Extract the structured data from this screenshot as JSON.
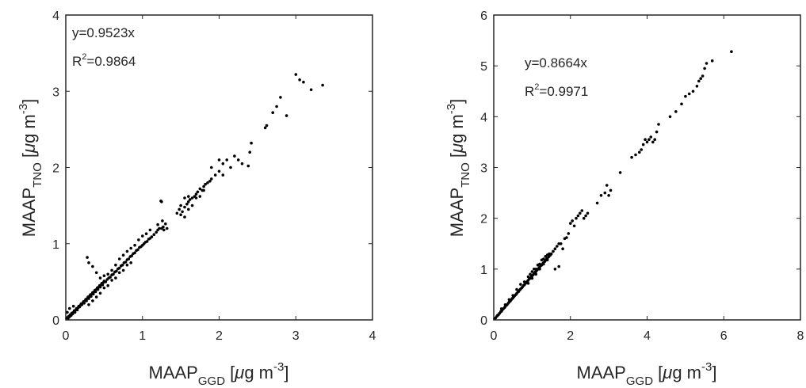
{
  "chart_data": [
    {
      "type": "scatter",
      "annotation": {
        "equation": "y=0.9523x",
        "r2_label": "R",
        "r2_sup": "2",
        "r2_value": "=0.9864"
      },
      "xlabel": {
        "base": "MAAP",
        "sub": "GGD",
        "unit_open": " [",
        "mu": "μ",
        "unit_rest": "g m",
        "exp": "-3",
        "unit_close": "]"
      },
      "ylabel": {
        "base": "MAAP",
        "sub": "TNO",
        "unit_open": " [",
        "mu": "μ",
        "unit_rest": "g m",
        "exp": "-3",
        "unit_close": "]"
      },
      "xlim": [
        0,
        4
      ],
      "ylim": [
        0,
        4
      ],
      "xticks": [
        "0",
        "1",
        "2",
        "3",
        "4"
      ],
      "yticks": [
        "0",
        "1",
        "2",
        "3",
        "4"
      ],
      "points": [
        [
          0.01,
          0.02
        ],
        [
          0.02,
          0.03
        ],
        [
          0.03,
          0.02
        ],
        [
          0.04,
          0.05
        ],
        [
          0.05,
          0.04
        ],
        [
          0.06,
          0.07
        ],
        [
          0.07,
          0.06
        ],
        [
          0.08,
          0.09
        ],
        [
          0.09,
          0.08
        ],
        [
          0.1,
          0.1
        ],
        [
          0.11,
          0.12
        ],
        [
          0.12,
          0.1
        ],
        [
          0.13,
          0.13
        ],
        [
          0.14,
          0.15
        ],
        [
          0.15,
          0.13
        ],
        [
          0.16,
          0.16
        ],
        [
          0.17,
          0.18
        ],
        [
          0.18,
          0.17
        ],
        [
          0.19,
          0.19
        ],
        [
          0.2,
          0.21
        ],
        [
          0.21,
          0.2
        ],
        [
          0.22,
          0.22
        ],
        [
          0.23,
          0.24
        ],
        [
          0.24,
          0.22
        ],
        [
          0.25,
          0.25
        ],
        [
          0.26,
          0.27
        ],
        [
          0.27,
          0.25
        ],
        [
          0.28,
          0.28
        ],
        [
          0.29,
          0.3
        ],
        [
          0.3,
          0.28
        ],
        [
          0.31,
          0.31
        ],
        [
          0.32,
          0.33
        ],
        [
          0.33,
          0.31
        ],
        [
          0.34,
          0.34
        ],
        [
          0.35,
          0.36
        ],
        [
          0.36,
          0.34
        ],
        [
          0.37,
          0.37
        ],
        [
          0.38,
          0.39
        ],
        [
          0.39,
          0.37
        ],
        [
          0.4,
          0.4
        ],
        [
          0.41,
          0.42
        ],
        [
          0.42,
          0.4
        ],
        [
          0.43,
          0.43
        ],
        [
          0.44,
          0.45
        ],
        [
          0.45,
          0.43
        ],
        [
          0.46,
          0.46
        ],
        [
          0.47,
          0.48
        ],
        [
          0.48,
          0.46
        ],
        [
          0.49,
          0.49
        ],
        [
          0.5,
          0.51
        ],
        [
          0.52,
          0.5
        ],
        [
          0.54,
          0.53
        ],
        [
          0.56,
          0.55
        ],
        [
          0.58,
          0.56
        ],
        [
          0.6,
          0.59
        ],
        [
          0.62,
          0.6
        ],
        [
          0.64,
          0.63
        ],
        [
          0.66,
          0.64
        ],
        [
          0.68,
          0.67
        ],
        [
          0.7,
          0.68
        ],
        [
          0.72,
          0.71
        ],
        [
          0.74,
          0.72
        ],
        [
          0.76,
          0.75
        ],
        [
          0.78,
          0.76
        ],
        [
          0.8,
          0.79
        ],
        [
          0.82,
          0.8
        ],
        [
          0.84,
          0.83
        ],
        [
          0.86,
          0.84
        ],
        [
          0.88,
          0.87
        ],
        [
          0.9,
          0.88
        ],
        [
          0.92,
          0.91
        ],
        [
          0.94,
          0.92
        ],
        [
          0.96,
          0.95
        ],
        [
          0.98,
          0.96
        ],
        [
          1.0,
          0.98
        ],
        [
          1.02,
          1.0
        ],
        [
          1.04,
          1.02
        ],
        [
          1.06,
          1.03
        ],
        [
          1.08,
          1.06
        ],
        [
          1.1,
          1.07
        ],
        [
          1.12,
          1.09
        ],
        [
          1.15,
          1.12
        ],
        [
          1.18,
          1.15
        ],
        [
          1.2,
          1.18
        ],
        [
          1.22,
          1.2
        ],
        [
          1.25,
          1.2
        ],
        [
          1.27,
          1.22
        ],
        [
          1.3,
          1.26
        ],
        [
          1.24,
          1.56
        ],
        [
          1.26,
          1.3
        ],
        [
          0.28,
          0.82
        ],
        [
          0.3,
          0.75
        ],
        [
          0.35,
          0.7
        ],
        [
          0.4,
          0.62
        ],
        [
          0.45,
          0.55
        ],
        [
          0.5,
          0.58
        ],
        [
          0.55,
          0.6
        ],
        [
          0.6,
          0.65
        ],
        [
          0.65,
          0.72
        ],
        [
          0.7,
          0.8
        ],
        [
          0.75,
          0.85
        ],
        [
          0.8,
          0.9
        ],
        [
          0.85,
          0.94
        ],
        [
          0.9,
          0.98
        ],
        [
          0.95,
          1.05
        ],
        [
          1.0,
          1.1
        ],
        [
          1.05,
          1.13
        ],
        [
          1.1,
          1.18
        ],
        [
          0.3,
          0.2
        ],
        [
          0.35,
          0.25
        ],
        [
          0.4,
          0.3
        ],
        [
          0.45,
          0.35
        ],
        [
          0.5,
          0.42
        ],
        [
          0.55,
          0.45
        ],
        [
          0.6,
          0.52
        ],
        [
          0.65,
          0.55
        ],
        [
          0.7,
          0.62
        ],
        [
          0.75,
          0.65
        ],
        [
          0.8,
          0.72
        ],
        [
          0.85,
          0.75
        ],
        [
          1.45,
          1.4
        ],
        [
          1.48,
          1.45
        ],
        [
          1.5,
          1.5
        ],
        [
          1.52,
          1.42
        ],
        [
          1.55,
          1.48
        ],
        [
          1.58,
          1.52
        ],
        [
          1.6,
          1.55
        ],
        [
          1.62,
          1.58
        ],
        [
          1.65,
          1.6
        ],
        [
          1.68,
          1.62
        ],
        [
          1.7,
          1.65
        ],
        [
          1.72,
          1.68
        ],
        [
          1.75,
          1.72
        ],
        [
          1.78,
          1.7
        ],
        [
          1.8,
          1.75
        ],
        [
          1.82,
          1.78
        ],
        [
          1.85,
          1.8
        ],
        [
          1.88,
          1.82
        ],
        [
          1.9,
          1.85
        ],
        [
          1.5,
          1.38
        ],
        [
          1.55,
          1.35
        ],
        [
          1.6,
          1.45
        ],
        [
          1.65,
          1.5
        ],
        [
          1.55,
          1.6
        ],
        [
          1.6,
          1.62
        ],
        [
          1.7,
          1.6
        ],
        [
          1.75,
          1.62
        ],
        [
          1.8,
          1.7
        ],
        [
          1.95,
          1.9
        ],
        [
          2.0,
          1.95
        ],
        [
          2.05,
          2.05
        ],
        [
          2.1,
          2.1
        ],
        [
          2.15,
          2.0
        ],
        [
          2.2,
          2.15
        ],
        [
          2.25,
          2.1
        ],
        [
          2.3,
          2.05
        ],
        [
          2.4,
          2.2
        ],
        [
          2.42,
          2.32
        ],
        [
          2.38,
          2.02
        ],
        [
          2.6,
          2.52
        ],
        [
          2.62,
          2.55
        ],
        [
          2.7,
          2.72
        ],
        [
          2.75,
          2.8
        ],
        [
          2.8,
          2.92
        ],
        [
          2.88,
          2.68
        ],
        [
          3.0,
          3.22
        ],
        [
          3.05,
          3.15
        ],
        [
          3.1,
          3.12
        ],
        [
          3.2,
          3.02
        ],
        [
          3.35,
          3.08
        ],
        [
          1.25,
          1.55
        ],
        [
          1.9,
          2.0
        ],
        [
          2.0,
          2.1
        ],
        [
          1.2,
          1.25
        ],
        [
          1.28,
          1.18
        ],
        [
          1.32,
          1.2
        ],
        [
          2.05,
          1.9
        ],
        [
          0.02,
          0.1
        ],
        [
          0.05,
          0.15
        ],
        [
          0.1,
          0.18
        ]
      ]
    },
    {
      "type": "scatter",
      "annotation": {
        "equation": "y=0.8664x",
        "r2_label": "R",
        "r2_sup": "2",
        "r2_value": "=0.9971"
      },
      "xlabel": {
        "base": "MAAP",
        "sub": "GGD",
        "unit_open": " [",
        "mu": "μ",
        "unit_rest": "g m",
        "exp": "-3",
        "unit_close": "]"
      },
      "ylabel": {
        "base": "MAAP",
        "sub": "TNO",
        "unit_open": " [",
        "mu": "μ",
        "unit_rest": "g m",
        "exp": "-3",
        "unit_close": "]"
      },
      "xlim": [
        0,
        8
      ],
      "ylim": [
        0,
        6
      ],
      "xticks": [
        "0",
        "2",
        "4",
        "6",
        "8"
      ],
      "yticks": [
        "0",
        "1",
        "2",
        "3",
        "4",
        "5",
        "6"
      ],
      "points": [
        [
          0.02,
          0.02
        ],
        [
          0.05,
          0.04
        ],
        [
          0.08,
          0.07
        ],
        [
          0.1,
          0.09
        ],
        [
          0.12,
          0.1
        ],
        [
          0.15,
          0.13
        ],
        [
          0.18,
          0.16
        ],
        [
          0.2,
          0.17
        ],
        [
          0.22,
          0.19
        ],
        [
          0.25,
          0.22
        ],
        [
          0.28,
          0.24
        ],
        [
          0.3,
          0.26
        ],
        [
          0.33,
          0.29
        ],
        [
          0.35,
          0.3
        ],
        [
          0.38,
          0.33
        ],
        [
          0.4,
          0.35
        ],
        [
          0.43,
          0.37
        ],
        [
          0.45,
          0.39
        ],
        [
          0.48,
          0.42
        ],
        [
          0.5,
          0.43
        ],
        [
          0.53,
          0.46
        ],
        [
          0.55,
          0.48
        ],
        [
          0.58,
          0.5
        ],
        [
          0.6,
          0.52
        ],
        [
          0.63,
          0.55
        ],
        [
          0.65,
          0.56
        ],
        [
          0.68,
          0.59
        ],
        [
          0.7,
          0.61
        ],
        [
          0.73,
          0.63
        ],
        [
          0.75,
          0.65
        ],
        [
          0.78,
          0.68
        ],
        [
          0.8,
          0.69
        ],
        [
          0.83,
          0.72
        ],
        [
          0.85,
          0.74
        ],
        [
          0.88,
          0.76
        ],
        [
          0.9,
          0.78
        ],
        [
          0.93,
          0.81
        ],
        [
          0.95,
          0.82
        ],
        [
          0.98,
          0.85
        ],
        [
          1.0,
          0.87
        ],
        [
          1.03,
          0.89
        ],
        [
          1.05,
          0.91
        ],
        [
          1.08,
          0.94
        ],
        [
          1.1,
          0.95
        ],
        [
          1.13,
          0.98
        ],
        [
          1.15,
          1.0
        ],
        [
          1.18,
          1.02
        ],
        [
          1.2,
          1.04
        ],
        [
          1.23,
          1.07
        ],
        [
          1.25,
          1.08
        ],
        [
          1.28,
          1.11
        ],
        [
          1.3,
          1.13
        ],
        [
          1.33,
          1.15
        ],
        [
          1.35,
          1.17
        ],
        [
          1.38,
          1.2
        ],
        [
          1.4,
          1.21
        ],
        [
          1.43,
          1.24
        ],
        [
          1.45,
          1.26
        ],
        [
          1.48,
          1.28
        ],
        [
          1.5,
          1.3
        ],
        [
          0.6,
          0.6
        ],
        [
          0.7,
          0.7
        ],
        [
          0.8,
          0.75
        ],
        [
          0.9,
          0.85
        ],
        [
          1.0,
          0.95
        ],
        [
          1.1,
          1.0
        ],
        [
          1.2,
          1.1
        ],
        [
          1.3,
          1.2
        ],
        [
          1.4,
          1.28
        ],
        [
          0.5,
          0.48
        ],
        [
          0.4,
          0.4
        ],
        [
          0.3,
          0.3
        ],
        [
          0.2,
          0.22
        ],
        [
          1.6,
          1.0
        ],
        [
          1.7,
          1.05
        ],
        [
          1.8,
          1.4
        ],
        [
          2.0,
          1.9
        ],
        [
          2.05,
          1.95
        ],
        [
          2.1,
          1.85
        ],
        [
          2.15,
          2.0
        ],
        [
          2.2,
          2.05
        ],
        [
          2.25,
          2.1
        ],
        [
          2.3,
          2.15
        ],
        [
          2.35,
          2.0
        ],
        [
          2.4,
          2.05
        ],
        [
          2.45,
          2.1
        ],
        [
          2.7,
          2.3
        ],
        [
          2.8,
          2.45
        ],
        [
          2.9,
          2.5
        ],
        [
          3.0,
          2.45
        ],
        [
          3.05,
          2.55
        ],
        [
          2.95,
          2.65
        ],
        [
          3.3,
          2.9
        ],
        [
          3.6,
          3.2
        ],
        [
          3.7,
          3.25
        ],
        [
          3.8,
          3.3
        ],
        [
          3.85,
          3.35
        ],
        [
          3.9,
          3.45
        ],
        [
          4.0,
          3.5
        ],
        [
          4.05,
          3.55
        ],
        [
          4.1,
          3.6
        ],
        [
          4.15,
          3.5
        ],
        [
          4.2,
          3.55
        ],
        [
          3.95,
          3.55
        ],
        [
          4.25,
          3.7
        ],
        [
          4.3,
          3.85
        ],
        [
          4.6,
          4.0
        ],
        [
          4.75,
          4.1
        ],
        [
          4.9,
          4.25
        ],
        [
          5.0,
          4.4
        ],
        [
          5.1,
          4.45
        ],
        [
          5.2,
          4.5
        ],
        [
          5.3,
          4.6
        ],
        [
          5.35,
          4.7
        ],
        [
          5.4,
          4.75
        ],
        [
          5.45,
          4.8
        ],
        [
          5.5,
          4.95
        ],
        [
          5.55,
          5.05
        ],
        [
          5.7,
          5.1
        ],
        [
          6.2,
          5.28
        ],
        [
          1.55,
          1.35
        ],
        [
          1.6,
          1.4
        ],
        [
          1.65,
          1.45
        ],
        [
          1.7,
          1.5
        ],
        [
          1.75,
          1.5
        ],
        [
          1.85,
          1.6
        ],
        [
          1.9,
          1.62
        ],
        [
          1.95,
          1.7
        ],
        [
          0.9,
          0.72
        ],
        [
          1.0,
          0.82
        ],
        [
          1.1,
          0.9
        ],
        [
          1.2,
          1.0
        ],
        [
          1.3,
          1.1
        ],
        [
          1.4,
          1.18
        ],
        [
          0.95,
          0.9
        ],
        [
          1.05,
          1.0
        ],
        [
          1.15,
          1.08
        ],
        [
          1.25,
          1.18
        ],
        [
          1.35,
          1.25
        ],
        [
          1.45,
          1.3
        ]
      ]
    }
  ]
}
